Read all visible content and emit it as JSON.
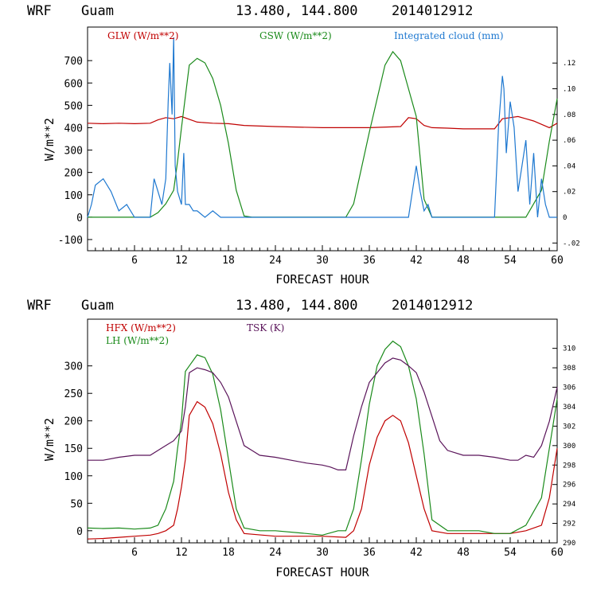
{
  "chart_data": [
    {
      "type": "line",
      "header": {
        "model": "WRF",
        "site": "Guam",
        "coords": "13.480, 144.800",
        "init": "2014012912"
      },
      "xlabel": "FORECAST HOUR",
      "ylabel": "W/m**2",
      "xlim": [
        0,
        60
      ],
      "ylim": [
        -150,
        850
      ],
      "x_ticks": [
        6,
        12,
        18,
        24,
        30,
        36,
        42,
        48,
        54,
        60
      ],
      "y_ticks": [
        -100,
        0,
        100,
        200,
        300,
        400,
        500,
        600,
        700
      ],
      "y2lim": [
        -0.026,
        0.148
      ],
      "y2_tick_labels": [
        "-.02",
        "0",
        ".02",
        ".04",
        ".06",
        ".08",
        ".10",
        ".12"
      ],
      "y2_ticks": [
        -0.02,
        0,
        0.02,
        0.04,
        0.06,
        0.08,
        0.1,
        0.12
      ],
      "series": [
        {
          "name": "GLW (W/m**2)",
          "axis": "left",
          "color": "#c00000",
          "x": [
            0,
            2,
            4,
            6,
            8,
            9,
            10,
            11,
            12,
            14,
            16,
            18,
            20,
            24,
            30,
            36,
            40,
            41,
            42,
            43,
            44,
            46,
            48,
            52,
            53,
            54,
            55,
            56,
            57,
            58,
            59,
            60
          ],
          "y": [
            420,
            418,
            420,
            418,
            420,
            435,
            445,
            440,
            450,
            425,
            420,
            418,
            410,
            405,
            400,
            400,
            405,
            445,
            440,
            410,
            400,
            398,
            395,
            395,
            440,
            445,
            450,
            440,
            430,
            415,
            400,
            420
          ]
        },
        {
          "name": "GSW (W/m**2)",
          "axis": "left",
          "color": "#1a8a1a",
          "x": [
            0,
            8,
            9,
            10,
            11,
            11.5,
            12,
            13,
            14,
            15,
            16,
            17,
            18,
            19,
            20,
            21,
            33,
            34,
            36,
            38,
            39,
            40,
            42,
            43,
            44,
            52,
            56,
            58,
            59,
            60
          ],
          "y": [
            0,
            0,
            20,
            60,
            120,
            250,
            400,
            680,
            710,
            690,
            620,
            500,
            330,
            120,
            5,
            0,
            0,
            60,
            380,
            680,
            740,
            700,
            450,
            80,
            0,
            0,
            0,
            120,
            340,
            530
          ]
        },
        {
          "name": "Integrated cloud (mm)",
          "axis": "right",
          "color": "#1e78d0",
          "x": [
            0,
            0.5,
            1,
            2,
            3,
            4,
            5,
            6,
            7,
            8,
            8.5,
            9,
            9.5,
            10,
            10.3,
            10.5,
            10.8,
            11,
            11.2,
            11.5,
            12,
            12.3,
            12.5,
            13,
            13.5,
            14,
            15,
            16,
            17,
            18,
            19,
            20,
            21,
            41,
            41.5,
            42,
            42.5,
            43,
            43.5,
            44,
            45,
            52,
            52.5,
            53,
            53.2,
            53.5,
            54,
            54.5,
            55,
            55.5,
            56,
            56.5,
            57,
            57.5,
            58,
            58.5,
            59,
            60
          ],
          "y": [
            0,
            0.01,
            0.025,
            0.03,
            0.02,
            0.005,
            0.01,
            0.0,
            0.0,
            0.0,
            0.03,
            0.02,
            0.01,
            0.03,
            0.09,
            0.12,
            0.08,
            0.14,
            0.04,
            0.02,
            0.01,
            0.05,
            0.01,
            0.01,
            0.005,
            0.005,
            0.0,
            0.005,
            0.0,
            0.0,
            0.0,
            0.0,
            0.0,
            0.0,
            0.02,
            0.04,
            0.02,
            0.005,
            0.01,
            0.0,
            0.0,
            0.0,
            0.07,
            0.11,
            0.1,
            0.05,
            0.09,
            0.07,
            0.02,
            0.04,
            0.06,
            0.01,
            0.05,
            0.0,
            0.03,
            0.01,
            0.0,
            0.0
          ]
        }
      ]
    },
    {
      "type": "line",
      "header": {
        "model": "WRF",
        "site": "Guam",
        "coords": "13.480, 144.800",
        "init": "2014012912"
      },
      "xlabel": "FORECAST HOUR",
      "ylabel": "W/m**2",
      "xlim": [
        0,
        60
      ],
      "ylim": [
        -22,
        385
      ],
      "x_ticks": [
        6,
        12,
        18,
        24,
        30,
        36,
        42,
        48,
        54,
        60
      ],
      "y_ticks": [
        0,
        50,
        100,
        150,
        200,
        250,
        300
      ],
      "y2lim": [
        290,
        313
      ],
      "y2_ticks": [
        290,
        292,
        294,
        296,
        298,
        300,
        302,
        304,
        306,
        308,
        310
      ],
      "series": [
        {
          "name": "HFX (W/m**2)",
          "axis": "left",
          "color": "#c00000",
          "x": [
            0,
            2,
            4,
            6,
            8,
            9,
            10,
            11,
            11.5,
            12,
            12.5,
            13,
            14,
            15,
            16,
            17,
            18,
            19,
            20,
            24,
            30,
            33,
            34,
            35,
            36,
            37,
            38,
            39,
            40,
            41,
            42,
            43,
            44,
            46,
            48,
            52,
            54,
            56,
            58,
            59,
            60
          ],
          "y": [
            -15,
            -14,
            -12,
            -10,
            -8,
            -5,
            0,
            10,
            40,
            80,
            130,
            210,
            235,
            225,
            195,
            140,
            70,
            20,
            -5,
            -10,
            -10,
            -12,
            0,
            40,
            120,
            170,
            200,
            210,
            200,
            160,
            100,
            40,
            0,
            -5,
            -5,
            -5,
            -5,
            0,
            10,
            60,
            150
          ]
        },
        {
          "name": "LH (W/m**2)",
          "axis": "left",
          "color": "#1a8a1a",
          "x": [
            0,
            2,
            4,
            6,
            8,
            9,
            10,
            11,
            11.5,
            12,
            12.5,
            13,
            14,
            15,
            16,
            17,
            18,
            19,
            20,
            22,
            24,
            28,
            30,
            32,
            33,
            34,
            35,
            36,
            37,
            38,
            39,
            40,
            41,
            42,
            43,
            44,
            46,
            48,
            50,
            52,
            54,
            56,
            58,
            59,
            60
          ],
          "y": [
            5,
            4,
            5,
            3,
            5,
            10,
            40,
            90,
            150,
            200,
            290,
            300,
            320,
            315,
            285,
            220,
            130,
            40,
            5,
            0,
            0,
            -5,
            -8,
            0,
            0,
            40,
            130,
            230,
            300,
            330,
            345,
            335,
            300,
            240,
            140,
            20,
            0,
            0,
            0,
            -5,
            -5,
            10,
            60,
            150,
            240
          ]
        },
        {
          "name": "TSK (K)",
          "axis": "right",
          "color": "#5a145a",
          "x": [
            0,
            2,
            4,
            6,
            8,
            9,
            10,
            11,
            12,
            12.5,
            13,
            14,
            15,
            16,
            17,
            18,
            19,
            20,
            21,
            22,
            24,
            26,
            28,
            30,
            31,
            32,
            33,
            34,
            35,
            36,
            37,
            38,
            39,
            40,
            41,
            42,
            43,
            44,
            45,
            46,
            48,
            50,
            52,
            54,
            55,
            56,
            57,
            58,
            59,
            60
          ],
          "y": [
            298.5,
            298.5,
            298.8,
            299,
            299,
            299.5,
            300,
            300.5,
            301.5,
            304,
            307.5,
            308,
            307.8,
            307.5,
            306.5,
            305,
            302.5,
            300,
            299.5,
            299,
            298.8,
            298.5,
            298.2,
            298,
            297.8,
            297.5,
            297.5,
            301,
            304,
            306.5,
            307.5,
            308.5,
            309,
            308.8,
            308.2,
            307.5,
            305.5,
            303,
            300.5,
            299.5,
            299,
            299,
            298.8,
            298.5,
            298.5,
            299,
            298.8,
            300,
            302.5,
            306
          ]
        }
      ]
    }
  ]
}
